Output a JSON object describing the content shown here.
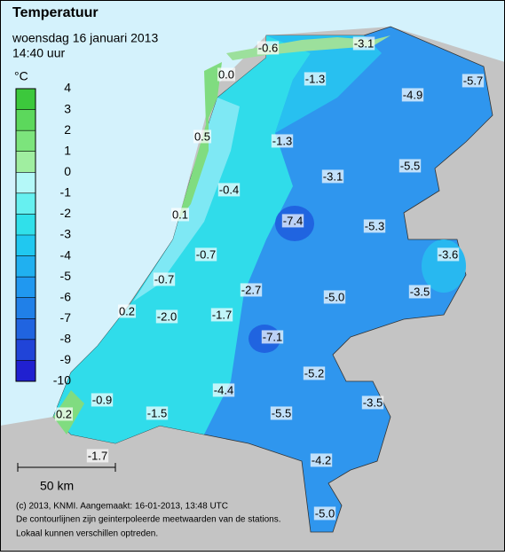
{
  "header": {
    "title": "Temperatuur",
    "date": "woensdag 16 januari 2013",
    "time": "14:40 uur"
  },
  "legend": {
    "unit": "°C",
    "ticks": [
      4,
      3,
      2,
      1,
      0,
      -1,
      -2,
      -3,
      -4,
      -5,
      -6,
      -7,
      -8,
      -9,
      -10
    ],
    "colors": [
      "#3cc83c",
      "#5cd85c",
      "#7ce47c",
      "#a0eea0",
      "#b4f8f8",
      "#66f0f0",
      "#30e0ea",
      "#20c8f0",
      "#20b0f0",
      "#2098f0",
      "#2080e8",
      "#2064e0",
      "#2044d8",
      "#2020d0"
    ]
  },
  "stations": [
    "0.0",
    "-0.6",
    "-3.1",
    "-1.3",
    "-5.7",
    "-4.9",
    "0.5",
    "-1.3",
    "-5.5",
    "-3.1",
    "-0.4",
    "0.1",
    "-7.4",
    "-5.3",
    "-3.6",
    "-0.7",
    "-0.7",
    "-2.7",
    "-3.5",
    "-5.0",
    "0.2",
    "-2.0",
    "-1.7",
    "-7.1",
    "-5.2",
    "-4.4",
    "-3.5",
    "-0.9",
    "-1.5",
    "0.2",
    "-5.5",
    "-1.7",
    "-4.2",
    "-5.0"
  ],
  "scale_label": "50 km",
  "footer": [
    "(c) 2013, KNMI. Aangemaakt: 16-01-2013, 13:48 UTC",
    "De contourlijnen zijn geinterpoleerde meetwaarden van de stations.",
    "Lokaal kunnen verschillen optreden."
  ]
}
